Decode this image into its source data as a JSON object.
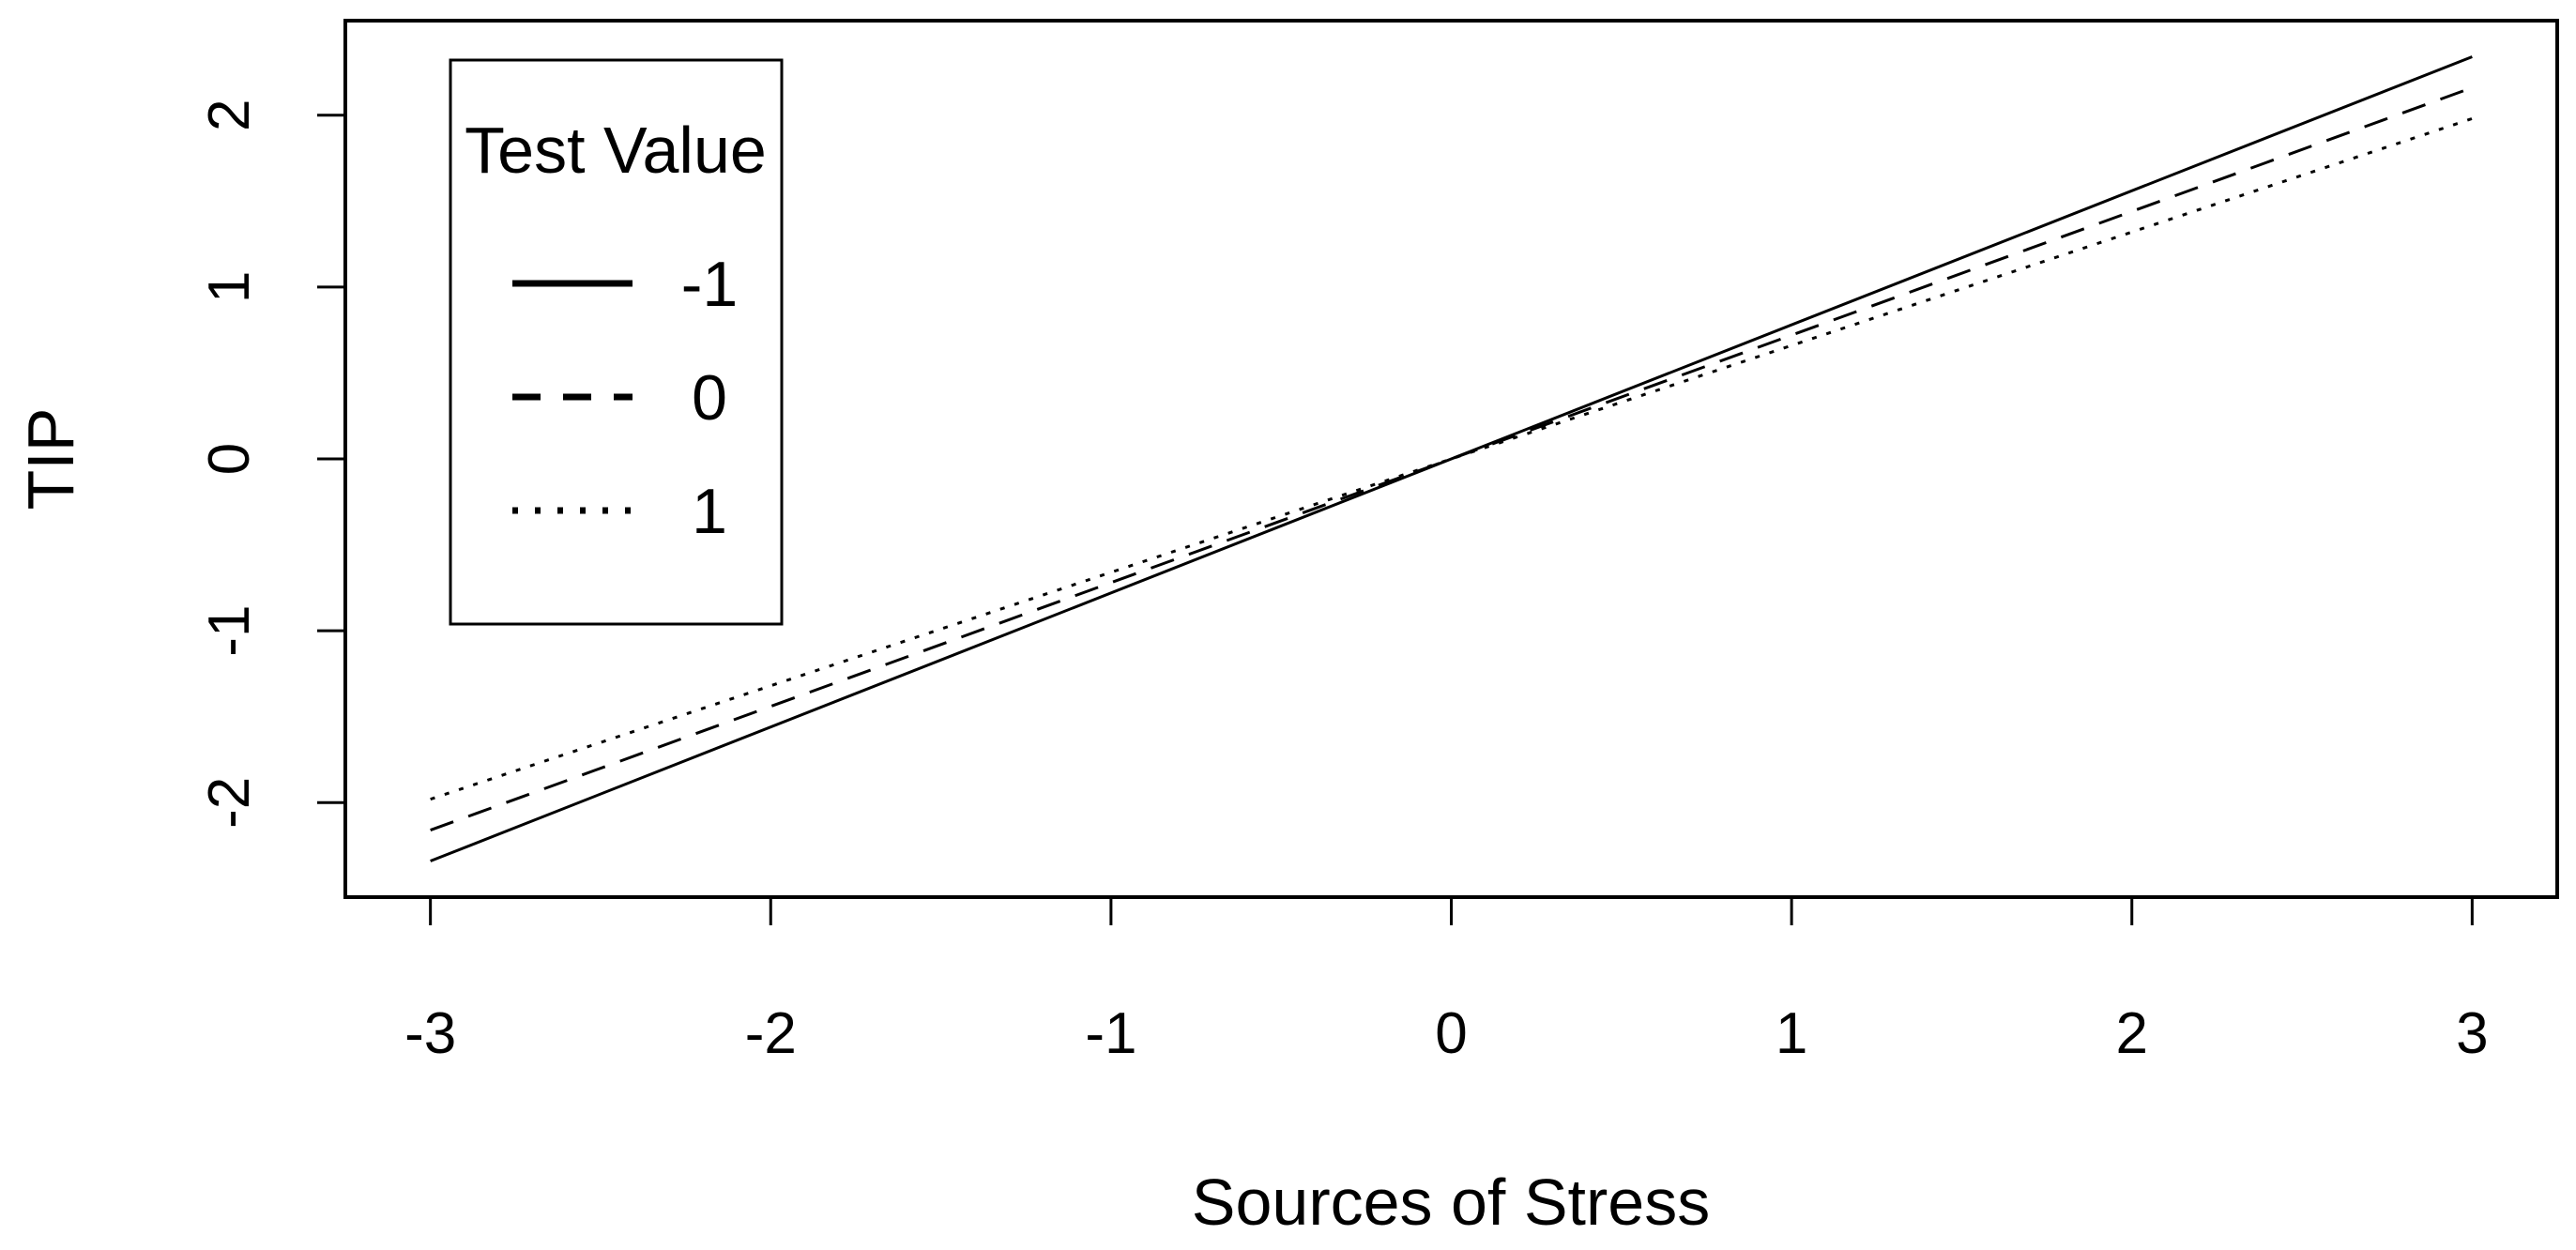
{
  "chart_data": {
    "type": "line",
    "title": "",
    "xlabel": "Sources of Stress",
    "ylabel": "TIP",
    "xlim": [
      -3.25,
      3.25
    ],
    "ylim": [
      -2.55,
      2.55
    ],
    "xticks": [
      -3,
      -2,
      -1,
      0,
      1,
      2,
      3
    ],
    "yticks": [
      -2,
      -1,
      0,
      1,
      2
    ],
    "xtick_labels": [
      "-3",
      "-2",
      "-1",
      "0",
      "1",
      "2",
      "3"
    ],
    "ytick_labels": [
      "-2",
      "-1",
      "0",
      "1",
      "2"
    ],
    "grid": false,
    "legend": {
      "title": "Test Value",
      "placement": "top-left"
    },
    "x": [
      -3,
      3
    ],
    "series": [
      {
        "name": "-1",
        "style": "solid",
        "values": [
          -2.34,
          2.34
        ]
      },
      {
        "name": "0",
        "style": "dashed",
        "values": [
          -2.16,
          2.16
        ]
      },
      {
        "name": "1",
        "style": "dotted",
        "values": [
          -1.98,
          1.98
        ]
      }
    ],
    "colors": {
      "line": "#000000",
      "background": "#ffffff"
    }
  }
}
